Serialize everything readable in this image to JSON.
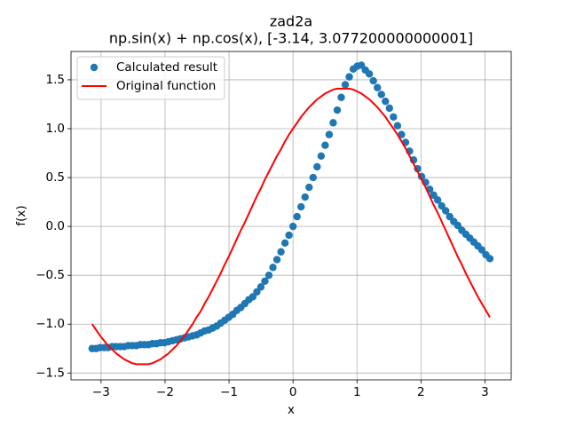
{
  "chart_data": {
    "type": "scatter",
    "title": "zad2a",
    "subtitle": "np.sin(x) + np.cos(x), [-3.14, 3.077200000000001]",
    "x_label": "x",
    "y_label": "f(x)",
    "grid": true,
    "legend": "upper left",
    "xlim": [
      -3.47,
      3.41
    ],
    "ylim": [
      -1.57,
      1.79
    ],
    "xticks": [
      {
        "value": -3,
        "label": "−3"
      },
      {
        "value": -2,
        "label": "−2"
      },
      {
        "value": -1,
        "label": "−1"
      },
      0,
      1,
      2,
      3
    ],
    "yticks": [
      {
        "value": -1.5,
        "label": "−1.5"
      },
      {
        "value": -1.0,
        "label": "−1.0"
      },
      {
        "value": -0.5,
        "label": "−0.5"
      },
      {
        "value": 0,
        "label": "0.0"
      },
      0.5,
      {
        "value": 1.0,
        "label": "1.0"
      },
      1.5
    ],
    "x": [
      -3.14,
      -3.0772,
      -3.0144,
      -2.9516,
      -2.8888,
      -2.826,
      -2.7632,
      -2.7004,
      -2.6376,
      -2.5748,
      -2.512,
      -2.4492,
      -2.3864,
      -2.3236,
      -2.2608,
      -2.198,
      -2.1352,
      -2.0724,
      -2.0096,
      -1.9468,
      -1.884,
      -1.8212,
      -1.7584,
      -1.6956,
      -1.6328,
      -1.57,
      -1.5072,
      -1.4444,
      -1.3816,
      -1.3188,
      -1.256,
      -1.1932,
      -1.1304,
      -1.0676,
      -1.0048,
      -0.942,
      -0.8792,
      -0.8164,
      -0.7536,
      -0.6908,
      -0.628,
      -0.5652,
      -0.5024,
      -0.4396,
      -0.3768,
      -0.314,
      -0.2512,
      -0.1884,
      -0.1256,
      -0.0628,
      0,
      0.0628,
      0.1256,
      0.1884,
      0.2512,
      0.314,
      0.3768,
      0.4396,
      0.5024,
      0.5652,
      0.628,
      0.6908,
      0.7536,
      0.8164,
      0.8792,
      0.942,
      1.0048,
      1.0676,
      1.1304,
      1.1932,
      1.256,
      1.3188,
      1.3816,
      1.4444,
      1.5072,
      1.57,
      1.6328,
      1.6956,
      1.7584,
      1.8212,
      1.884,
      1.9468,
      2.0096,
      2.0724,
      2.1352,
      2.198,
      2.2608,
      2.3236,
      2.3864,
      2.4492,
      2.512,
      2.5748,
      2.6376,
      2.7004,
      2.7632,
      2.826,
      2.8888,
      2.9516,
      3.0144,
      3.0772
    ],
    "series": [
      {
        "name": "Calculated result",
        "type": "scatter",
        "color": "#1f77b4",
        "values": [
          -1.25,
          -1.25,
          -1.24,
          -1.24,
          -1.24,
          -1.23,
          -1.23,
          -1.23,
          -1.23,
          -1.22,
          -1.22,
          -1.22,
          -1.21,
          -1.21,
          -1.21,
          -1.2,
          -1.2,
          -1.19,
          -1.19,
          -1.18,
          -1.17,
          -1.16,
          -1.15,
          -1.14,
          -1.13,
          -1.12,
          -1.11,
          -1.09,
          -1.07,
          -1.06,
          -1.04,
          -1.02,
          -0.99,
          -0.96,
          -0.93,
          -0.9,
          -0.86,
          -0.83,
          -0.79,
          -0.75,
          -0.72,
          -0.67,
          -0.62,
          -0.56,
          -0.5,
          -0.42,
          -0.34,
          -0.26,
          -0.17,
          -0.09,
          0.0,
          0.1,
          0.2,
          0.3,
          0.4,
          0.5,
          0.61,
          0.72,
          0.83,
          0.94,
          1.06,
          1.19,
          1.32,
          1.45,
          1.53,
          1.61,
          1.64,
          1.65,
          1.6,
          1.56,
          1.49,
          1.42,
          1.35,
          1.28,
          1.21,
          1.12,
          1.03,
          0.94,
          0.86,
          0.77,
          0.68,
          0.59,
          0.51,
          0.45,
          0.38,
          0.32,
          0.27,
          0.21,
          0.16,
          0.1,
          0.05,
          0.01,
          -0.04,
          -0.08,
          -0.12,
          -0.16,
          -0.2,
          -0.24,
          -0.29,
          -0.33
        ]
      },
      {
        "name": "Original function",
        "type": "line",
        "color": "#ff0000",
        "values": [
          -1.0,
          -1.06,
          -1.12,
          -1.17,
          -1.22,
          -1.26,
          -1.3,
          -1.33,
          -1.36,
          -1.38,
          -1.4,
          -1.41,
          -1.41,
          -1.41,
          -1.41,
          -1.4,
          -1.38,
          -1.36,
          -1.33,
          -1.3,
          -1.26,
          -1.22,
          -1.17,
          -1.12,
          -1.06,
          -1.0,
          -0.93,
          -0.87,
          -0.79,
          -0.72,
          -0.64,
          -0.56,
          -0.48,
          -0.39,
          -0.31,
          -0.22,
          -0.13,
          -0.04,
          0.04,
          0.13,
          0.22,
          0.31,
          0.39,
          0.48,
          0.56,
          0.64,
          0.72,
          0.79,
          0.87,
          0.94,
          1.0,
          1.06,
          1.12,
          1.17,
          1.22,
          1.26,
          1.3,
          1.33,
          1.36,
          1.38,
          1.4,
          1.41,
          1.41,
          1.41,
          1.41,
          1.4,
          1.38,
          1.36,
          1.33,
          1.3,
          1.26,
          1.22,
          1.17,
          1.12,
          1.06,
          1.0,
          0.94,
          0.87,
          0.8,
          0.72,
          0.64,
          0.56,
          0.48,
          0.4,
          0.31,
          0.22,
          0.14,
          0.05,
          -0.04,
          -0.13,
          -0.22,
          -0.31,
          -0.39,
          -0.48,
          -0.56,
          -0.64,
          -0.72,
          -0.79,
          -0.86,
          -0.93
        ]
      }
    ]
  }
}
